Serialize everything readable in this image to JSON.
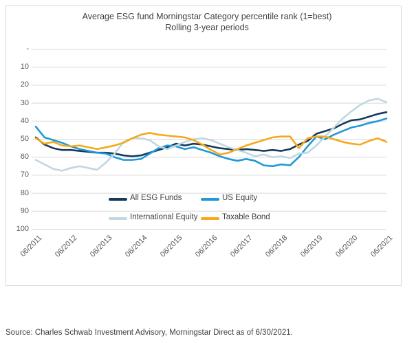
{
  "chart_data": {
    "type": "line",
    "title": "Average ESG fund Morningstar Category percentile rank (1=best)",
    "subtitle": "Rolling 3-year periods",
    "x_axis": {
      "year_labels": [
        "06/2011",
        "06/2012",
        "06/2013",
        "06/2014",
        "06/2015",
        "06/2016",
        "06/2017",
        "06/2018",
        "06/2019",
        "06/2020",
        "06/2021"
      ],
      "points_per_year": 4
    },
    "y_axis": {
      "tick_labels": [
        "-",
        "10",
        "20",
        "30",
        "40",
        "50",
        "60",
        "70",
        "80",
        "90",
        "100"
      ],
      "min": 0,
      "max": 100,
      "orientation": "1 (best) at top, 100 (worst) at bottom"
    },
    "grid": true,
    "legend_position": "bottom-inside",
    "series": [
      {
        "name": "All ESG Funds",
        "color": "#17395C",
        "values": [
          49,
          53,
          55,
          56,
          56,
          56.5,
          57,
          57.5,
          57.5,
          58,
          59,
          59.5,
          59,
          57.5,
          56,
          54.5,
          52.5,
          53.5,
          52.5,
          53,
          54,
          55,
          55.5,
          56,
          55.5,
          56,
          56.5,
          56,
          56.5,
          55.5,
          53,
          51,
          47,
          45.5,
          44,
          41.5,
          39.5,
          39,
          37.5,
          36,
          35
        ]
      },
      {
        "name": "US Equity",
        "color": "#1F9AD7",
        "values": [
          43,
          49,
          50.5,
          52,
          54,
          55.5,
          56.5,
          57.5,
          58,
          60,
          61.5,
          61.5,
          61,
          58,
          55,
          53.5,
          54,
          55.5,
          54.5,
          56,
          57.5,
          59.5,
          61,
          62,
          61,
          62,
          64.5,
          65,
          64,
          64.5,
          60,
          54,
          48.5,
          50,
          47.5,
          45.5,
          43.5,
          42.5,
          41,
          40,
          38.5
        ]
      },
      {
        "name": "International Equity",
        "color": "#BFD8E2",
        "values": [
          61.5,
          64,
          66.5,
          67.5,
          66,
          65,
          66,
          67,
          63,
          58,
          51.5,
          49.5,
          49.5,
          50.5,
          54,
          55.5,
          53.5,
          51.5,
          50,
          49.5,
          50.5,
          52.5,
          54.5,
          56,
          57.5,
          59.5,
          58.5,
          60,
          59.5,
          60.5,
          58,
          57.5,
          53.5,
          48.5,
          43.5,
          38.5,
          34.5,
          31,
          28.5,
          27.5,
          29.5
        ]
      },
      {
        "name": "Taxable Bond",
        "color": "#F7A81B",
        "values": [
          49.5,
          52.5,
          51.5,
          53.5,
          54,
          53.5,
          54.5,
          55.5,
          54.5,
          53.5,
          52,
          49.5,
          47.5,
          46.5,
          47.5,
          48,
          48.5,
          49,
          50.5,
          53,
          56,
          58.5,
          57.5,
          55.5,
          53.5,
          52,
          50.5,
          49,
          48.5,
          48.5,
          55,
          49.5,
          48.5,
          48.5,
          50,
          51.5,
          52.5,
          53,
          51,
          49.5,
          51.5
        ]
      }
    ]
  },
  "source_note": "Source: Charles Schwab Investment Advisory, Morningstar Direct as of 6/30/2021.",
  "colors": {
    "grid": "#D9D9D9",
    "panel_border": "#D9D9D9",
    "title_text": "#3F3F3F",
    "axis_text": "#595959",
    "legend_text": "#404040",
    "source_text": "#404040",
    "background": "#FFFFFF"
  }
}
